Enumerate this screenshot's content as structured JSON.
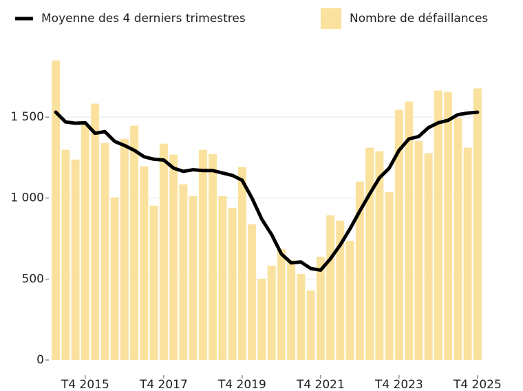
{
  "chart_data": {
    "type": "bar",
    "categories": [
      null,
      null,
      null,
      "T4 2015",
      null,
      null,
      null,
      null,
      null,
      null,
      null,
      "T4 2017",
      null,
      null,
      null,
      null,
      null,
      null,
      null,
      "T4 2019",
      null,
      null,
      null,
      null,
      null,
      null,
      null,
      "T4 2021",
      null,
      null,
      null,
      null,
      null,
      null,
      null,
      "T4 2023",
      null,
      null,
      null,
      null,
      null,
      null,
      null,
      "T4 2025"
    ],
    "series": [
      {
        "name": "Nombre de défaillances",
        "type": "bar",
        "color": "#fae29e",
        "values": [
          1850,
          1298,
          1238,
          1460,
          1583,
          1340,
          1004,
          1366,
          1447,
          1196,
          953,
          1336,
          1268,
          1085,
          1013,
          1298,
          1272,
          1013,
          940,
          1191,
          838,
          502,
          583,
          685,
          617,
          532,
          430,
          638,
          894,
          860,
          736,
          1102,
          1311,
          1289,
          1038,
          1545,
          1596,
          1353,
          1277,
          1664,
          1655,
          1494,
          1311,
          1677
        ]
      },
      {
        "name": "Moyenne des 4 derniers trimestres",
        "type": "line",
        "color": "#000000",
        "values": [
          1530,
          1470,
          1462,
          1465,
          1400,
          1410,
          1350,
          1325,
          1295,
          1255,
          1240,
          1235,
          1185,
          1165,
          1175,
          1170,
          1170,
          1155,
          1140,
          1110,
          1000,
          870,
          775,
          655,
          600,
          605,
          565,
          555,
          625,
          710,
          810,
          920,
          1025,
          1125,
          1185,
          1295,
          1365,
          1380,
          1435,
          1465,
          1480,
          1515,
          1525,
          1530
        ]
      }
    ],
    "ylim": [
      0,
      1900
    ],
    "yticks": [
      0,
      500,
      {
        "value": 1000,
        "label": "1 000"
      },
      {
        "value": 1500,
        "label": "1 500"
      }
    ],
    "grid": true
  }
}
